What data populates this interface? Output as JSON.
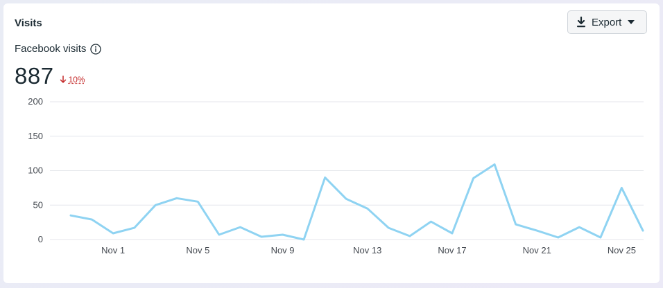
{
  "card": {
    "title": "Visits",
    "export_label": "Export",
    "subtitle": "Facebook visits",
    "metric_value": "887",
    "metric_change": "10%",
    "icons": [
      "download-icon",
      "caret-down-icon",
      "info-icon",
      "arrow-down-icon"
    ]
  },
  "colors": {
    "line": "#8fd3f2",
    "grid": "#e4e6eb",
    "change_negative": "#c42828"
  },
  "chart_data": {
    "type": "line",
    "title": "",
    "xlabel": "",
    "ylabel": "",
    "ylim": [
      0,
      200
    ],
    "yticks": [
      "0",
      "50",
      "100",
      "150",
      "200"
    ],
    "xticks": [
      "Nov 1",
      "Nov 5",
      "Nov 9",
      "Nov 13",
      "Nov 17",
      "Nov 21",
      "Nov 25"
    ],
    "grid": true,
    "x": [
      "Oct 30",
      "Oct 31",
      "Nov 1",
      "Nov 2",
      "Nov 3",
      "Nov 4",
      "Nov 5",
      "Nov 6",
      "Nov 7",
      "Nov 8",
      "Nov 9",
      "Nov 10",
      "Nov 11",
      "Nov 12",
      "Nov 13",
      "Nov 14",
      "Nov 15",
      "Nov 16",
      "Nov 17",
      "Nov 18",
      "Nov 19",
      "Nov 20",
      "Nov 21",
      "Nov 22",
      "Nov 23",
      "Nov 24",
      "Nov 25",
      "Nov 26"
    ],
    "series": [
      {
        "values": [
          35,
          29,
          9,
          17,
          50,
          60,
          55,
          7,
          18,
          4,
          7,
          0,
          90,
          59,
          45,
          17,
          5,
          26,
          9,
          89,
          109,
          22,
          13,
          3,
          18,
          3,
          75,
          13
        ]
      }
    ]
  }
}
